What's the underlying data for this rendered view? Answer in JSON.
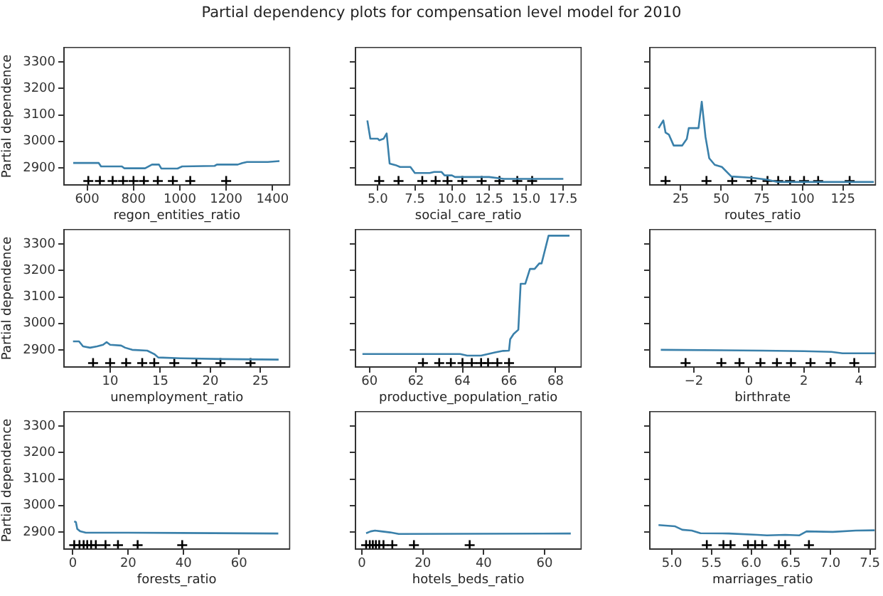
{
  "chart_data": [
    {
      "type": "line",
      "title": "Partial dependency plots for compensation level model for 2010",
      "xlabel": "regon_entities_ratio",
      "ylabel": "Partial dependence",
      "xlim": [
        500,
        1474
      ],
      "xticks": [
        600,
        800,
        1000,
        1200,
        1400
      ],
      "ylim": [
        2835,
        3355
      ],
      "yticks": [
        2900,
        3000,
        3100,
        3200,
        3300
      ],
      "series": [
        {
          "color": "#3a80aa",
          "x": [
            540,
            650,
            660,
            750,
            760,
            850,
            880,
            910,
            920,
            990,
            1010,
            1150,
            1160,
            1250,
            1270,
            1290,
            1380,
            1430
          ],
          "values": [
            2918,
            2918,
            2905,
            2905,
            2898,
            2898,
            2912,
            2912,
            2897,
            2897,
            2905,
            2907,
            2912,
            2912,
            2918,
            2922,
            2922,
            2925
          ]
        },
        {
          "type": "scatter",
          "color": "#000000",
          "marker": "cross",
          "x": [
            605,
            655,
            710,
            755,
            800,
            845,
            905,
            970,
            1045,
            1200
          ],
          "values": [
            2850,
            2850,
            2850,
            2850,
            2850,
            2850,
            2850,
            2850,
            2850,
            2850
          ]
        }
      ]
    },
    {
      "type": "line",
      "xlabel": "social_care_ratio",
      "xlim": [
        3.5,
        18.7
      ],
      "xticks": [
        {
          "value": 5,
          "label": "5.0"
        },
        {
          "value": 7.5,
          "label": "7.5"
        },
        {
          "value": 10,
          "label": "10.0"
        },
        {
          "value": 12.5,
          "label": "12.5"
        },
        {
          "value": 15,
          "label": "15.0"
        },
        {
          "value": 17.5,
          "label": "17.5"
        }
      ],
      "ylim": [
        2835,
        3355
      ],
      "yticks": [
        2900,
        3000,
        3100,
        3200,
        3300
      ],
      "tick_labels": "x",
      "series": [
        {
          "color": "#3a80aa",
          "x": [
            4.3,
            4.5,
            5.0,
            5.1,
            5.4,
            5.6,
            5.8,
            6.2,
            6.5,
            7.2,
            7.5,
            8.5,
            8.8,
            9.3,
            9.5,
            10.0,
            10.2,
            12.5,
            13.5,
            17.5
          ],
          "values": [
            3079,
            3010,
            3010,
            3004,
            3010,
            3030,
            2916,
            2910,
            2903,
            2903,
            2880,
            2880,
            2884,
            2884,
            2871,
            2871,
            2865,
            2865,
            2858,
            2858
          ]
        },
        {
          "type": "scatter",
          "color": "#000000",
          "marker": "cross",
          "x": [
            5.1,
            6.4,
            8.0,
            8.9,
            9.7,
            10.7,
            12.0,
            13.2,
            14.4,
            15.4
          ],
          "values": [
            2850,
            2850,
            2850,
            2850,
            2850,
            2850,
            2850,
            2850,
            2850,
            2850
          ]
        }
      ]
    },
    {
      "type": "line",
      "xlabel": "routes_ratio",
      "xlim": [
        6,
        145
      ],
      "xticks": [
        25,
        50,
        75,
        100,
        125
      ],
      "ylim": [
        2835,
        3355
      ],
      "yticks": [
        2900,
        3000,
        3100,
        3200,
        3300
      ],
      "tick_labels": "x",
      "series": [
        {
          "color": "#3a80aa",
          "x": [
            11.4,
            14.3,
            15.7,
            17.8,
            20.7,
            25.9,
            28.8,
            30,
            36,
            38,
            40.3,
            42.6,
            46,
            50.4,
            56.2,
            69.2,
            77.9,
            85,
            144
          ],
          "values": [
            3050,
            3079,
            3033,
            3025,
            2984,
            2984,
            3009,
            3050,
            3050,
            3150,
            3017,
            2936,
            2911,
            2903,
            2867,
            2862,
            2855,
            2846,
            2846
          ]
        },
        {
          "type": "scatter",
          "color": "#000000",
          "marker": "cross",
          "x": [
            15.7,
            40.9,
            56.8,
            68.6,
            78.5,
            85.1,
            92.4,
            101,
            109.7,
            129.1
          ],
          "values": [
            2850,
            2850,
            2850,
            2850,
            2850,
            2850,
            2850,
            2850,
            2850,
            2850
          ]
        }
      ]
    },
    {
      "type": "line",
      "xlabel": "unemployment_ratio",
      "ylabel": "Partial dependence",
      "xlim": [
        5.4,
        27.9
      ],
      "xticks": [
        10,
        15,
        20,
        25
      ],
      "ylim": [
        2835,
        3355
      ],
      "yticks": [
        2900,
        3000,
        3100,
        3200,
        3300
      ],
      "series": [
        {
          "color": "#3a80aa",
          "x": [
            6.3,
            6.9,
            7.3,
            8.0,
            8.7,
            9.3,
            9.65,
            10,
            11.1,
            11.5,
            12.2,
            13.7,
            14.4,
            14.8,
            17.0,
            21.3,
            26.8
          ],
          "values": [
            2932,
            2932,
            2913,
            2908,
            2913,
            2919,
            2929,
            2919,
            2916,
            2908,
            2900,
            2897,
            2884,
            2871,
            2868,
            2865,
            2863
          ]
        },
        {
          "type": "scatter",
          "color": "#000000",
          "marker": "cross",
          "x": [
            8.3,
            10,
            11.6,
            13.2,
            14.4,
            16.4,
            18.6,
            21.0,
            24.0
          ],
          "values": [
            2850,
            2850,
            2850,
            2850,
            2850,
            2850,
            2850,
            2850,
            2850
          ]
        }
      ]
    },
    {
      "type": "line",
      "xlabel": "productive_population_ratio",
      "xlim": [
        59.4,
        69.1
      ],
      "xticks": [
        60,
        62,
        64,
        66,
        68
      ],
      "ylim": [
        2835,
        3355
      ],
      "yticks": [
        2900,
        3000,
        3100,
        3200,
        3300
      ],
      "tick_labels": "x",
      "series": [
        {
          "color": "#3a80aa",
          "x": [
            59.7,
            63.9,
            64.2,
            64.8,
            65.1,
            65.4,
            65.75,
            66.0,
            66.05,
            66.2,
            66.4,
            66.5,
            66.7,
            66.9,
            67.1,
            67.3,
            67.4,
            67.7,
            68.6
          ],
          "values": [
            2884,
            2884,
            2878,
            2878,
            2884,
            2890,
            2896,
            2897,
            2940,
            2960,
            2976,
            3150,
            3150,
            3206,
            3206,
            3227,
            3227,
            3332,
            3332
          ]
        },
        {
          "type": "scatter",
          "color": "#000000",
          "marker": "cross",
          "x": [
            62.3,
            63.0,
            63.5,
            64.0,
            64.4,
            64.8,
            65.1,
            65.5,
            66.0
          ],
          "values": [
            2850,
            2850,
            2850,
            2850,
            2850,
            2850,
            2850,
            2850,
            2850
          ]
        }
      ]
    },
    {
      "type": "line",
      "xlabel": "birthrate",
      "xlim": [
        -3.6,
        4.6
      ],
      "xticks": [
        {
          "value": -2,
          "label": "−2"
        },
        0,
        2,
        4
      ],
      "ylim": [
        2835,
        3355
      ],
      "yticks": [
        2900,
        3000,
        3100,
        3200,
        3300
      ],
      "tick_labels": "x",
      "series": [
        {
          "color": "#3a80aa",
          "x": [
            -3.2,
            0.5,
            2,
            3,
            3.4,
            4.6
          ],
          "values": [
            2900,
            2897,
            2895,
            2892,
            2887,
            2887
          ]
        },
        {
          "type": "scatter",
          "color": "#000000",
          "marker": "cross",
          "x": [
            -2.3,
            -1.0,
            -0.34,
            0.42,
            1.02,
            1.53,
            2.24,
            2.97,
            3.83
          ],
          "values": [
            2850,
            2850,
            2850,
            2850,
            2850,
            2850,
            2850,
            2850,
            2850
          ]
        }
      ]
    },
    {
      "type": "line",
      "xlabel": "forests_ratio",
      "ylabel": "Partial dependence",
      "xlim": [
        -3.2,
        78.3
      ],
      "xticks": [
        0,
        20,
        40,
        60
      ],
      "ylim": [
        2835,
        3355
      ],
      "yticks": [
        2900,
        3000,
        3100,
        3200,
        3300
      ],
      "series": [
        {
          "color": "#3a80aa",
          "x": [
            0.5,
            1.1,
            1.6,
            2.7,
            4.7,
            20,
            74.2
          ],
          "values": [
            2940,
            2937,
            2911,
            2902,
            2897,
            2897,
            2894
          ]
        },
        {
          "type": "scatter",
          "color": "#000000",
          "marker": "cross",
          "x": [
            0.5,
            2.4,
            3.9,
            5.2,
            6.6,
            8.3,
            11.8,
            16.3,
            23.4,
            39.5
          ],
          "values": [
            2850,
            2850,
            2850,
            2850,
            2850,
            2850,
            2850,
            2850,
            2850,
            2850
          ]
        }
      ]
    },
    {
      "type": "line",
      "xlabel": "hotels_beds_ratio",
      "xlim": [
        -2.1,
        72
      ],
      "xticks": [
        0,
        20,
        40,
        60
      ],
      "ylim": [
        2835,
        3355
      ],
      "yticks": [
        2900,
        3000,
        3100,
        3200,
        3300
      ],
      "tick_labels": "x",
      "series": [
        {
          "color": "#3a80aa",
          "x": [
            1.4,
            2.9,
            4.3,
            6.4,
            9.3,
            12.1,
            68.6
          ],
          "values": [
            2895,
            2902,
            2905,
            2902,
            2898,
            2892,
            2894
          ]
        },
        {
          "type": "scatter",
          "color": "#000000",
          "marker": "cross",
          "x": [
            1.4,
            2.6,
            3.6,
            4.6,
            5.7,
            7.1,
            10.0,
            17.1,
            35.4
          ],
          "values": [
            2850,
            2850,
            2850,
            2850,
            2850,
            2850,
            2850,
            2850,
            2850
          ]
        }
      ]
    },
    {
      "type": "line",
      "xlabel": "marriages_ratio",
      "xlim": [
        4.72,
        7.57
      ],
      "xticks": [
        {
          "value": 5,
          "label": "5.0"
        },
        {
          "value": 5.5,
          "label": "5.5"
        },
        {
          "value": 6,
          "label": "6.0"
        },
        {
          "value": 6.5,
          "label": "6.5"
        },
        {
          "value": 7,
          "label": "7.0"
        },
        {
          "value": 7.5,
          "label": "7.5"
        }
      ],
      "ylim": [
        2835,
        3355
      ],
      "yticks": [
        2900,
        3000,
        3100,
        3200,
        3300
      ],
      "tick_labels": "x",
      "series": [
        {
          "color": "#3a80aa",
          "x": [
            4.83,
            5.04,
            5.13,
            5.25,
            5.36,
            5.72,
            6.08,
            6.2,
            6.43,
            6.61,
            6.7,
            7.03,
            7.32,
            7.56
          ],
          "values": [
            2926,
            2921,
            2908,
            2905,
            2895,
            2894,
            2889,
            2887,
            2889,
            2887,
            2902,
            2900,
            2905,
            2906
          ]
        },
        {
          "type": "scatter",
          "color": "#000000",
          "marker": "cross",
          "x": [
            5.44,
            5.65,
            5.74,
            5.96,
            6.05,
            6.14,
            6.35,
            6.43,
            6.73
          ],
          "values": [
            2850,
            2850,
            2850,
            2850,
            2850,
            2850,
            2850,
            2850,
            2850
          ]
        }
      ]
    }
  ]
}
